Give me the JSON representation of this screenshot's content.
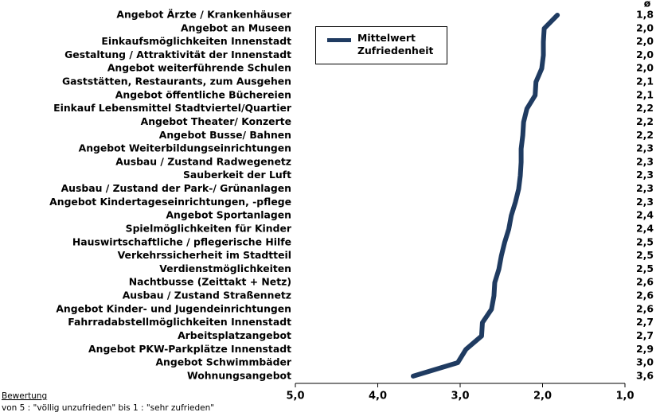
{
  "chart_data": {
    "type": "line",
    "value_column_header": "ø",
    "categories": [
      "Angebot Ärzte / Krankenhäuser",
      "Angebot an Museen",
      "Einkaufsmöglichkeiten Innenstadt",
      "Gestaltung / Attraktivität der Innenstadt",
      "Angebot weiterführende Schulen",
      "Gaststätten, Restaurants, zum Ausgehen",
      "Angebot öffentliche Büchereien",
      "Einkauf Lebensmittel Stadtviertel/Quartier",
      "Angebot Theater/ Konzerte",
      "Angebot Busse/ Bahnen",
      "Angebot Weiterbildungseinrichtungen",
      "Ausbau / Zustand Radwegenetz",
      "Sauberkeit der Luft",
      "Ausbau / Zustand der Park-/ Grünanlagen",
      "Angebot Kindertageseinrichtungen, -pflege",
      "Angebot Sportanlagen",
      "Spielmöglichkeiten für Kinder",
      "Hauswirtschaftliche / pflegerische Hilfe",
      "Verkehrssicherheit im Stadtteil",
      "Verdienstmöglichkeiten",
      "Nachtbusse (Zeittakt + Netz)",
      "Ausbau / Zustand Straßennetz",
      "Angebot Kinder- und Jugendeinrichtungen",
      "Fahrradabstellmöglichkeiten Innenstadt",
      "Arbeitsplatzangebot",
      "Angebot PKW-Parkplätze Innenstadt",
      "Angebot Schwimmbäder",
      "Wohnungsangebot"
    ],
    "series": [
      {
        "name": "Mittelwert Zufriedenheit",
        "color": "#1f3b61",
        "values": [
          1.82,
          1.98,
          1.99,
          1.99,
          2.01,
          2.08,
          2.09,
          2.19,
          2.23,
          2.24,
          2.26,
          2.26,
          2.27,
          2.29,
          2.33,
          2.38,
          2.41,
          2.46,
          2.5,
          2.53,
          2.58,
          2.59,
          2.62,
          2.73,
          2.74,
          2.93,
          3.03,
          3.57
        ],
        "value_labels": [
          "1,8",
          "2,0",
          "2,0",
          "2,0",
          "2,0",
          "2,1",
          "2,1",
          "2,2",
          "2,2",
          "2,2",
          "2,3",
          "2,3",
          "2,3",
          "2,3",
          "2,3",
          "2,4",
          "2,4",
          "2,5",
          "2,5",
          "2,5",
          "2,6",
          "2,6",
          "2,6",
          "2,7",
          "2,7",
          "2,9",
          "3,0",
          "3,6"
        ]
      }
    ],
    "xlim": [
      5,
      1
    ],
    "xticks": [
      {
        "value": 5,
        "label": "5,0"
      },
      {
        "value": 4,
        "label": "4,0"
      },
      {
        "value": 3,
        "label": "3,0"
      },
      {
        "value": 2,
        "label": "2,0"
      },
      {
        "value": 1,
        "label": "1,0"
      }
    ],
    "footnote_title": "Bewertung",
    "footnote": "von 5 : \"völlig unzufrieden\" bis 1 : \"sehr zufrieden\""
  }
}
